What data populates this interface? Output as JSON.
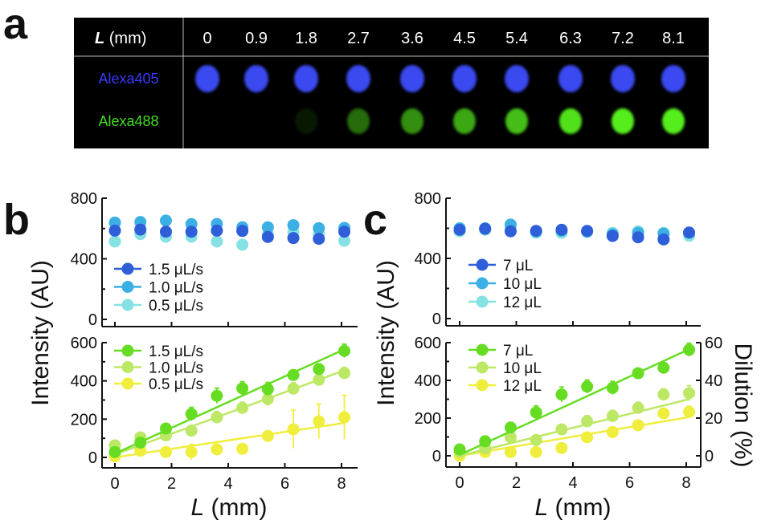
{
  "panel_labels": {
    "a": "a",
    "b": "b",
    "c": "c"
  },
  "panel_a": {
    "header_var": "L",
    "header_unit": " (mm)",
    "columns": [
      "0",
      "0.9",
      "1.8",
      "2.7",
      "3.6",
      "4.5",
      "5.4",
      "6.3",
      "7.2",
      "8.1"
    ],
    "rows": [
      {
        "label": "Alexa405",
        "color": "#3a3aff"
      },
      {
        "label": "Alexa488",
        "color": "#44dd22"
      }
    ]
  },
  "colors": {
    "blue_dark": "#2e5ed8",
    "blue_mid": "#3cb0e4",
    "blue_light": "#86e2e2",
    "green_dark": "#66dd22",
    "green_mid": "#bde865",
    "green_light": "#f0ee3c"
  },
  "chart_data": [
    {
      "id": "b-top",
      "type": "scatter",
      "panel": "b",
      "x": [
        0,
        0.9,
        1.8,
        2.7,
        3.6,
        4.5,
        5.4,
        6.3,
        7.2,
        8.1
      ],
      "xlim": [
        0,
        8
      ],
      "ylim": [
        0,
        800
      ],
      "xticks": [
        0,
        2,
        4,
        6,
        8
      ],
      "yticks": [
        "0",
        "400",
        "800"
      ],
      "legend": "bottom-left",
      "series": [
        {
          "name": "1.5 μL/s",
          "color": "#2e5ed8",
          "values": [
            586,
            593,
            579,
            579,
            586,
            584,
            544,
            537,
            532,
            579
          ],
          "sd": [
            15,
            15,
            15,
            15,
            15,
            15,
            15,
            15,
            15,
            15
          ]
        },
        {
          "name": "1.0 μL/s",
          "color": "#3cb0e4",
          "values": [
            639,
            643,
            652,
            629,
            630,
            608,
            608,
            622,
            602,
            604
          ],
          "sd": [
            15,
            15,
            15,
            15,
            15,
            15,
            15,
            15,
            25,
            25
          ]
        },
        {
          "name": "0.5 μL/s",
          "color": "#86e2e2",
          "values": [
            514,
            563,
            546,
            546,
            514,
            493,
            560,
            575,
            565,
            519
          ],
          "sd": [
            20,
            20,
            20,
            20,
            20,
            20,
            20,
            20,
            20,
            20
          ]
        }
      ]
    },
    {
      "id": "b-bottom",
      "type": "scatter",
      "panel": "b",
      "x": [
        0,
        0.9,
        1.8,
        2.7,
        3.6,
        4.5,
        5.4,
        6.3,
        7.2,
        8.1
      ],
      "xlim": [
        0,
        8
      ],
      "ylim": [
        0,
        600
      ],
      "xticks": [
        "0",
        "2",
        "4",
        "6",
        "8"
      ],
      "yticks": [
        "0",
        "200",
        "400",
        "600"
      ],
      "xlabel_var": "L",
      "xlabel_unit": " (mm)",
      "ylabel": "Intensity (AU)",
      "legend": "top-left",
      "series": [
        {
          "name": "1.5 μL/s",
          "color": "#66dd22",
          "values": [
            28,
            77,
            151,
            227,
            322,
            361,
            357,
            431,
            462,
            557
          ],
          "sd": [
            15,
            20,
            25,
            35,
            40,
            35,
            35,
            25,
            25,
            35
          ],
          "fit": [
            20,
            565
          ]
        },
        {
          "name": "1.0 μL/s",
          "color": "#bde865",
          "values": [
            63,
            105,
            115,
            140,
            210,
            259,
            305,
            360,
            406,
            441
          ],
          "sd": [
            10,
            15,
            20,
            25,
            30,
            30,
            35,
            30,
            30,
            30
          ],
          "fit": [
            15,
            455
          ]
        },
        {
          "name": "0.5 μL/s",
          "color": "#f0ee3c",
          "values": [
            5,
            35,
            28,
            28,
            42,
            45,
            112,
            147,
            189,
            210
          ],
          "sd": [
            10,
            10,
            20,
            40,
            20,
            20,
            20,
            100,
            90,
            115
          ],
          "fit": [
            0,
            180
          ]
        }
      ]
    },
    {
      "id": "c-top",
      "type": "scatter",
      "panel": "c",
      "x": [
        0,
        0.9,
        1.8,
        2.7,
        3.6,
        4.5,
        5.4,
        6.3,
        7.2,
        8.1
      ],
      "xlim": [
        0,
        8
      ],
      "ylim": [
        0,
        800
      ],
      "xticks": [
        0,
        2,
        4,
        6,
        8
      ],
      "yticks": [
        "0",
        "400",
        "800"
      ],
      "legend": "bottom-left",
      "series": [
        {
          "name": "7 μL",
          "color": "#2e5ed8",
          "values": [
            590,
            597,
            580,
            583,
            590,
            583,
            549,
            540,
            526,
            572
          ],
          "sd": [
            15,
            15,
            15,
            15,
            15,
            15,
            15,
            15,
            15,
            15
          ]
        },
        {
          "name": "10 μL",
          "color": "#3cb0e4",
          "values": [
            600,
            600,
            625,
            580,
            585,
            580,
            560,
            570,
            565,
            570
          ],
          "sd": [
            15,
            15,
            15,
            15,
            15,
            15,
            15,
            20,
            20,
            15
          ]
        },
        {
          "name": "12 μL",
          "color": "#86e2e2",
          "values": [
            580,
            590,
            600,
            570,
            570,
            575,
            570,
            580,
            570,
            550
          ],
          "sd": [
            15,
            15,
            15,
            15,
            15,
            15,
            15,
            15,
            15,
            15
          ]
        }
      ]
    },
    {
      "id": "c-bottom",
      "type": "scatter",
      "panel": "c",
      "x": [
        0,
        0.9,
        1.8,
        2.7,
        3.6,
        4.5,
        5.4,
        6.3,
        7.2,
        8.1
      ],
      "xlim": [
        0,
        8
      ],
      "ylim": [
        0,
        600
      ],
      "xticks": [
        "0",
        "2",
        "4",
        "6",
        "8"
      ],
      "yticks": [
        "0",
        "200",
        "400",
        "600"
      ],
      "y2lim": [
        0,
        60
      ],
      "y2ticks": [
        "0",
        "20",
        "40",
        "60"
      ],
      "y2label": "Dilution (%)",
      "xlabel_var": "L",
      "xlabel_unit": " (mm)",
      "ylabel": "Intensity (AU)",
      "legend": "top-left",
      "series": [
        {
          "name": "7 μL",
          "color": "#66dd22",
          "values": [
            34,
            77,
            150,
            230,
            325,
            367,
            360,
            438,
            467,
            562
          ],
          "sd": [
            15,
            20,
            25,
            35,
            40,
            35,
            35,
            25,
            25,
            35
          ],
          "fit": [
            5,
            565
          ]
        },
        {
          "name": "10 μL",
          "color": "#bde865",
          "values": [
            20,
            40,
            98,
            84,
            140,
            183,
            211,
            254,
            325,
            332
          ],
          "sd": [
            10,
            10,
            20,
            20,
            25,
            30,
            30,
            30,
            30,
            40
          ],
          "fit": [
            0,
            300
          ]
        },
        {
          "name": "12 μL",
          "color": "#f0ee3c",
          "values": [
            0,
            20,
            20,
            20,
            41,
            98,
            126,
            162,
            225,
            233
          ],
          "sd": [
            10,
            10,
            15,
            15,
            20,
            25,
            25,
            25,
            25,
            30
          ],
          "fit": [
            0,
            205
          ]
        }
      ]
    }
  ]
}
